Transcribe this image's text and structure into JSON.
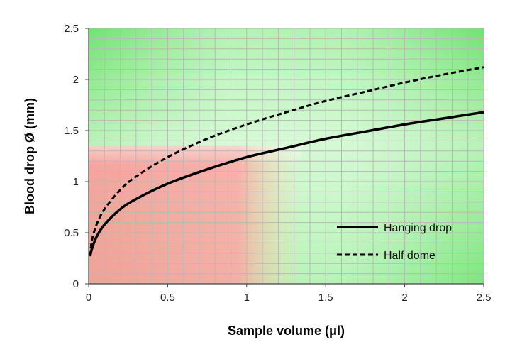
{
  "chart_data": {
    "type": "line",
    "title": "",
    "xlabel": "Sample volume (μl)",
    "ylabel": "Blood drop Ø (mm)",
    "xlim": [
      0,
      2.5
    ],
    "ylim": [
      0,
      2.5
    ],
    "x_ticks": [
      "0",
      "0.5",
      "1",
      "1.5",
      "2",
      "2.5"
    ],
    "y_ticks": [
      "0",
      "0.5",
      "1",
      "1.5",
      "2",
      "2.5"
    ],
    "grid": true,
    "legend_position": "bottom-right",
    "series": [
      {
        "name": "Hanging drop",
        "style": "solid",
        "color": "#000000",
        "x": [
          0.01,
          0.02,
          0.05,
          0.1,
          0.2,
          0.3,
          0.5,
          0.75,
          1.0,
          1.25,
          1.5,
          1.75,
          2.0,
          2.25,
          2.5
        ],
        "y": [
          0.27,
          0.34,
          0.46,
          0.58,
          0.73,
          0.83,
          0.98,
          1.12,
          1.24,
          1.33,
          1.42,
          1.49,
          1.56,
          1.62,
          1.68
        ]
      },
      {
        "name": "Half dome",
        "style": "dashed",
        "color": "#000000",
        "x": [
          0.01,
          0.02,
          0.05,
          0.1,
          0.2,
          0.3,
          0.5,
          0.75,
          1.0,
          1.25,
          1.5,
          1.75,
          2.0,
          2.25,
          2.5
        ],
        "y": [
          0.27,
          0.42,
          0.58,
          0.73,
          0.92,
          1.05,
          1.24,
          1.42,
          1.56,
          1.68,
          1.79,
          1.88,
          1.97,
          2.05,
          2.12
        ]
      }
    ]
  }
}
